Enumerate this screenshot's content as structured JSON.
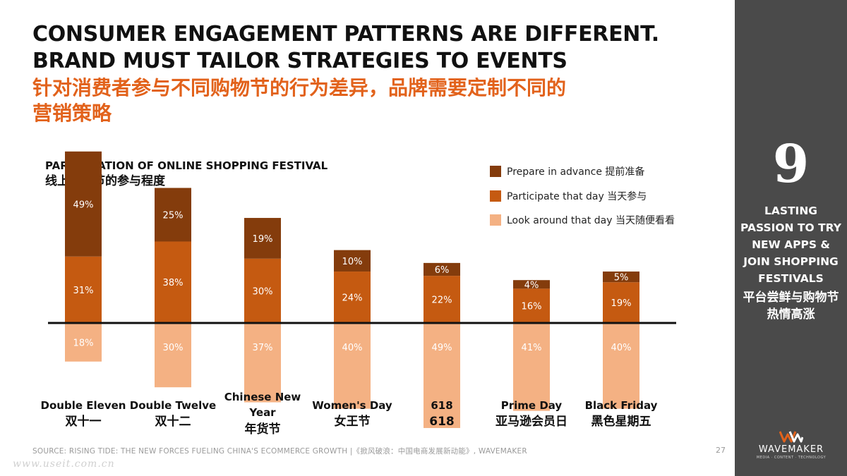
{
  "headline": {
    "line1": "CONSUMER ENGAGEMENT PATTERNS ARE DIFFERENT.",
    "line2": "BRAND MUST TAILOR STRATEGIES TO EVENTS",
    "cn_line1": "针对消费者参与不同购物节的行为差异，品牌需要定制不同的",
    "cn_line2": "营销策略"
  },
  "chart_data": {
    "type": "bar",
    "stacked": true,
    "title": "PARTICIPATION OF ONLINE SHOPPING FESTIVAL",
    "subtitle": "线上购物节的参与程度",
    "categories": [
      [
        "Double Eleven",
        "双十一"
      ],
      [
        "Double Twelve",
        "双十二"
      ],
      [
        "Chinese New Year",
        "年货节"
      ],
      [
        "Women's Day",
        "女王节"
      ],
      [
        "618",
        "618"
      ],
      [
        "Prime Day",
        "亚马逊会员日"
      ],
      [
        "Black Friday",
        "黑色星期五"
      ]
    ],
    "series": [
      {
        "name": "Prepare in advance 提前准备",
        "color": "#843c0c",
        "values": [
          49,
          25,
          19,
          10,
          6,
          4,
          5
        ],
        "labels": [
          "49%",
          "25%",
          "19%",
          "10%",
          "6%",
          "4%",
          "5%"
        ],
        "position": "above-baseline"
      },
      {
        "name": "Participate that day 当天参与",
        "color": "#c55a11",
        "values": [
          31,
          38,
          30,
          24,
          22,
          16,
          19
        ],
        "labels": [
          "31%",
          "38%",
          "30%",
          "24%",
          "22%",
          "16%",
          "19%"
        ],
        "position": "above-baseline"
      },
      {
        "name": "Look around that day 当天随便看看",
        "color": "#f4b183",
        "values": [
          18,
          30,
          37,
          40,
          49,
          41,
          40
        ],
        "labels": [
          "18%",
          "30%",
          "37%",
          "40%",
          "49%",
          "41%",
          "40%"
        ],
        "position": "below-baseline"
      }
    ],
    "legend_position": "top-right",
    "grid": false
  },
  "side": {
    "number": "9",
    "en": "LASTING PASSION TO TRY NEW APPS & JOIN SHOPPING FESTIVALS",
    "cn": "平台尝鲜与购物节热情高涨"
  },
  "footer": {
    "source": "SOURCE: RISING TIDE: THE NEW FORCES FUELING CHINA'S ECOMMERCE GROWTH |《掀风破浪：中国电商发展新动能》, WAVEMAKER",
    "page": "27",
    "watermark": "www.useit.com.cn"
  },
  "logo": {
    "name": "WAVEMAKER",
    "tagline": "MEDIA · CONTENT · TECHNOLOGY",
    "accent": "#e2621b"
  }
}
